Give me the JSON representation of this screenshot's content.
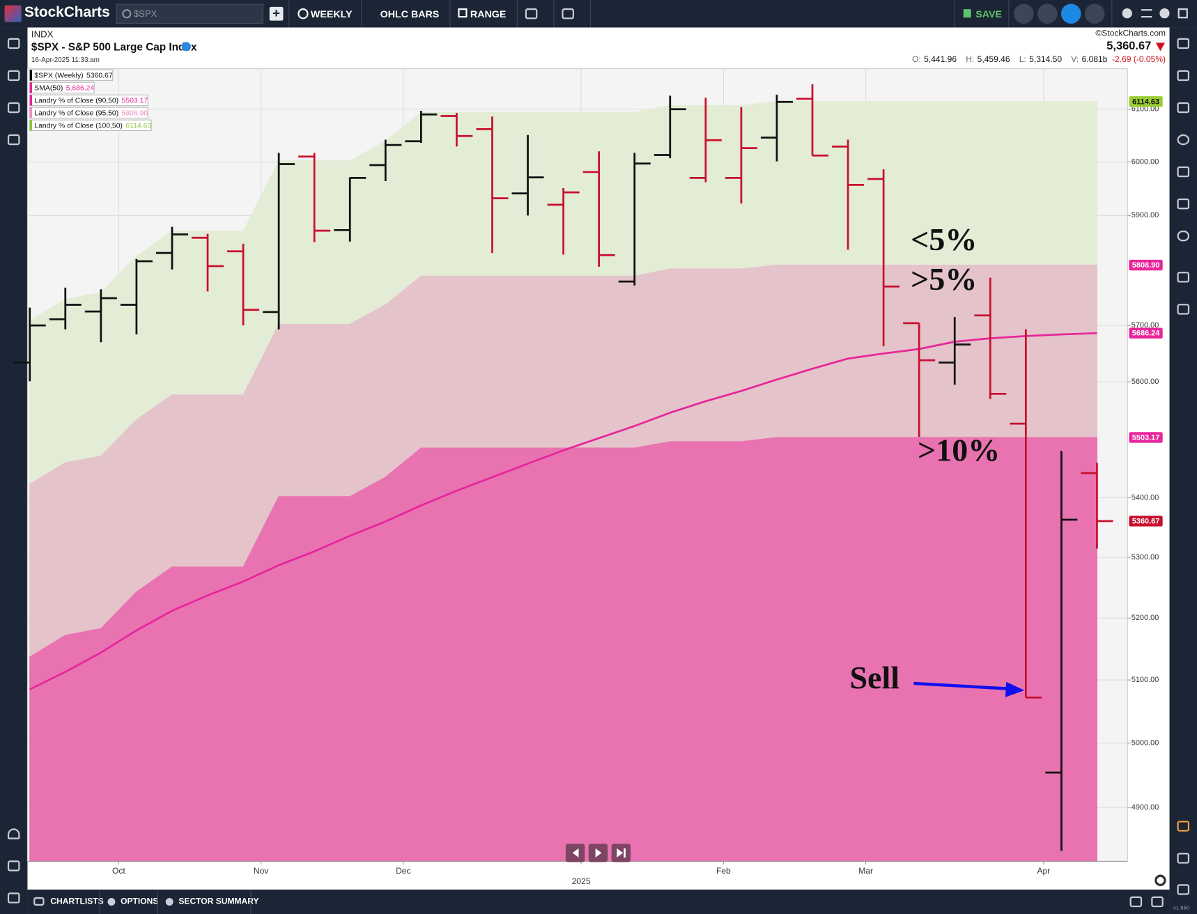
{
  "toolbar": {
    "logo": "StockCharts",
    "search": "$SPX",
    "buttons": [
      "WEEKLY",
      "OHLC BARS",
      "RANGE"
    ],
    "save": "SAVE"
  },
  "header": {
    "exchange": "INDX",
    "title": "$SPX - S&P 500 Large Cap Index",
    "timestamp": "16-Apr-2025 11:33:am",
    "copyright": "©StockCharts.com",
    "price": "5,360.67",
    "quote": [
      {
        "label": "O:",
        "value": "5,441.96"
      },
      {
        "label": "H:",
        "value": "5,459.46"
      },
      {
        "label": "L:",
        "value": "5,314.50"
      },
      {
        "label": "V:",
        "value": "6.081b"
      }
    ],
    "change": "-2.69 (-0.05%)"
  },
  "footer": {
    "tabs": [
      "CHARTLISTS",
      "OPTIONS",
      "SECTOR SUMMARY"
    ],
    "version": "v1.850"
  },
  "chart_data": {
    "type": "ohlc",
    "log_scale": true,
    "grid": true,
    "categories": [
      null,
      null,
      null,
      "Oct",
      null,
      null,
      null,
      "Nov",
      null,
      null,
      null,
      "Dec",
      null,
      null,
      null,
      null,
      "2025",
      null,
      null,
      null,
      "Feb",
      null,
      null,
      null,
      "Mar",
      null,
      null,
      null,
      null,
      "Apr",
      null
    ],
    "ylim": [
      4818,
      6178
    ],
    "yticks": [
      {
        "value": 4900,
        "label": "4900.00"
      },
      {
        "value": 5000,
        "label": "5000.00"
      },
      {
        "value": 5100,
        "label": "5100.00"
      },
      {
        "value": 5200,
        "label": "5200.00"
      },
      {
        "value": 5300,
        "label": "5300.00"
      },
      {
        "value": 5400,
        "label": "5400.00"
      },
      {
        "value": 5600,
        "label": "5600.00"
      },
      {
        "value": 5700,
        "label": "5700.00"
      },
      {
        "value": 5900,
        "label": "5900.00"
      },
      {
        "value": 6000,
        "label": "6000.00"
      },
      {
        "value": 6100,
        "label": "6100.00"
      }
    ],
    "series": [
      {
        "name": "$SPX (Weekly)",
        "type": "ohlc",
        "up_color": "#111111",
        "down_color": "#c8102e",
        "legend_color": "#111111",
        "open": [
          5634,
          5711,
          5725,
          5737,
          5831,
          5859,
          5834,
          5724,
          6010,
          5873,
          5994,
          6039,
          6087,
          6062,
          5941,
          5920,
          5981,
          5779,
          6013,
          5970,
          5970,
          6046,
          6120,
          6029,
          5968,
          5704,
          5634,
          5718,
          5527,
          4954,
          5441.96
        ],
        "high": [
          5732,
          5768,
          5765,
          5820,
          5879,
          5866,
          5848,
          6017,
          6017,
          5971,
          6042,
          6097,
          6093,
          6086,
          6051,
          5951,
          6020,
          6017,
          6126,
          6122,
          6104,
          6128,
          6148,
          6042,
          5986,
          5704,
          5715,
          5786,
          5693,
          5480,
          5459.46
        ],
        "low": [
          5601,
          5693,
          5670,
          5684,
          5801,
          5761,
          5700,
          5693,
          5851,
          5852,
          5964,
          6036,
          6029,
          5831,
          5900,
          5828,
          5806,
          5772,
          6007,
          5962,
          5922,
          6001,
          6012,
          5837,
          5663,
          5504,
          5595,
          5570,
          5072,
          4834,
          5314.5
        ],
        "close": [
          5700,
          5737,
          5749,
          5816,
          5865,
          5807,
          5728,
          5996,
          5872,
          5970,
          6032,
          6090,
          6049,
          5932,
          5971,
          5943,
          5827,
          5997,
          6100,
          6041,
          6026,
          6114,
          6012,
          5957,
          5770,
          5638,
          5666,
          5579,
          5072,
          5363,
          5360.67
        ]
      },
      {
        "name": "SMA(50)",
        "type": "line",
        "color": "#e8259a",
        "legend_color": "#e8259a",
        "values": [
          5085,
          5113,
          5144,
          5180,
          5212,
          5237,
          5260,
          5287,
          5310,
          5336,
          5360,
          5387,
          5412,
          5435,
          5458,
          5481,
          5502,
          5523,
          5546,
          5566,
          5584,
          5604,
          5623,
          5641,
          5650,
          5658,
          5671,
          5677,
          5681,
          5684,
          5686.24
        ],
        "value_labels": [
          null,
          null,
          null,
          null,
          null,
          null,
          null,
          null,
          null,
          null,
          null,
          null,
          null,
          null,
          null,
          null,
          null,
          null,
          null,
          null,
          null,
          null,
          null,
          null,
          null,
          null,
          null,
          null,
          null,
          null,
          "5,686.24"
        ]
      },
      {
        "name": "Landry % of Close (90,50)",
        "type": "area",
        "color": "#e873b0",
        "legend_color": "#e8259a",
        "values": [
          5137,
          5172,
          5183,
          5243,
          5284,
          5284,
          5284,
          5402,
          5402,
          5402,
          5435,
          5485,
          5485,
          5485,
          5485,
          5485,
          5485,
          5485,
          5496,
          5496,
          5496,
          5503.17,
          5503.17,
          5503.17,
          5503.17,
          5503.17,
          5503.17,
          5503.17,
          5503.17,
          5503.17,
          5503.17
        ]
      },
      {
        "name": "Landry % of Close (95,50)",
        "type": "area",
        "color": "#e4c3cb",
        "legend_color": "#f08cc0",
        "values": [
          5423,
          5460,
          5471,
          5534,
          5577,
          5577,
          5577,
          5702,
          5702,
          5702,
          5737,
          5789,
          5789,
          5789,
          5789,
          5789,
          5789,
          5789,
          5802,
          5802,
          5802,
          5808.9,
          5808.9,
          5808.9,
          5808.9,
          5808.9,
          5808.9,
          5808.9,
          5808.9,
          5808.9,
          5808.9
        ],
        "value_labels": [
          null,
          null,
          null,
          null,
          null,
          null,
          null,
          null,
          null,
          null,
          null,
          null,
          null,
          null,
          null,
          null,
          null,
          null,
          null,
          null,
          null,
          null,
          null,
          null,
          null,
          null,
          null,
          null,
          null,
          null,
          "5808.90"
        ]
      },
      {
        "name": "Landry % of Close (100,50)",
        "type": "area",
        "color": "#e3ecd5",
        "legend_color": "#8cc63f",
        "values": [
          5708,
          5747,
          5759,
          5825,
          5871,
          5871,
          5871,
          6002,
          6002,
          6002,
          6039,
          6094,
          6094,
          6094,
          6094,
          6094,
          6094,
          6094,
          6107,
          6107,
          6107,
          6114.63,
          6114.63,
          6114.63,
          6114.63,
          6114.63,
          6114.63,
          6114.63,
          6114.63,
          6114.63,
          6114.63
        ]
      }
    ],
    "price_tags": [
      {
        "value": 6114.63,
        "label": "6114.63",
        "color": "#9acd32",
        "text_color": "#111111"
      },
      {
        "value": 5808.9,
        "label": "5808.90",
        "color": "#e8259a",
        "text_color": "#ffffff"
      },
      {
        "value": 5686.24,
        "label": "5686.24",
        "color": "#e8259a",
        "text_color": "#ffffff"
      },
      {
        "value": 5503.17,
        "label": "5503.17",
        "color": "#e8259a",
        "text_color": "#ffffff"
      },
      {
        "value": 5360.67,
        "label": "5360.67",
        "color": "#c8102e",
        "text_color": "#ffffff"
      }
    ],
    "annotations": [
      "<5%",
      ">5%",
      ">10%",
      "Sell"
    ]
  }
}
